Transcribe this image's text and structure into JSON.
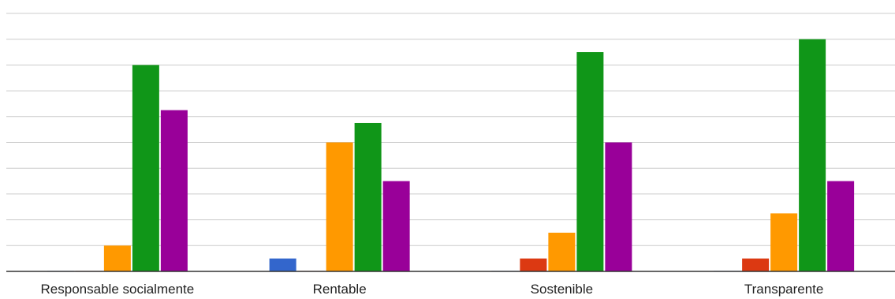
{
  "chart_data": {
    "type": "bar",
    "categories": [
      "Responsable socialmente",
      "Rentable",
      "Sostenible",
      "Transparente"
    ],
    "series": [
      {
        "values": [
          0,
          1,
          0,
          0
        ],
        "color": "#3366cc"
      },
      {
        "values": [
          0,
          0,
          1,
          1
        ],
        "color": "#dc3912"
      },
      {
        "values": [
          2,
          10,
          3,
          4.5
        ],
        "color": "#ff9900"
      },
      {
        "values": [
          16,
          11.5,
          17,
          18
        ],
        "color": "#109618"
      },
      {
        "values": [
          12.5,
          7,
          10,
          7
        ],
        "color": "#990099"
      }
    ],
    "ylim": [
      0,
      20
    ],
    "grid": true,
    "legend": "none"
  }
}
